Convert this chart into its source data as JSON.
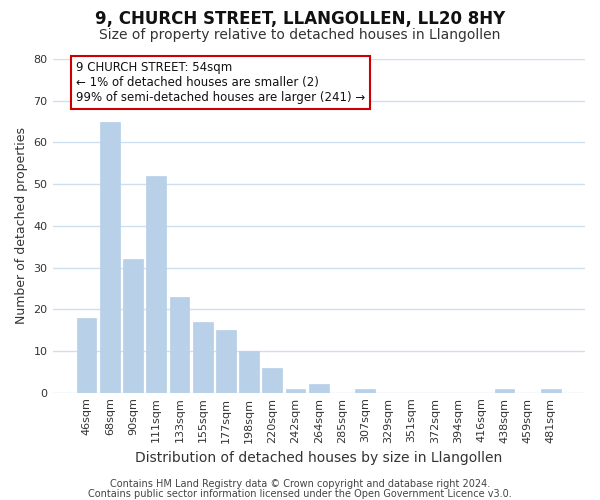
{
  "title": "9, CHURCH STREET, LLANGOLLEN, LL20 8HY",
  "subtitle": "Size of property relative to detached houses in Llangollen",
  "xlabel": "Distribution of detached houses by size in Llangollen",
  "ylabel": "Number of detached properties",
  "bar_labels": [
    "46sqm",
    "68sqm",
    "90sqm",
    "111sqm",
    "133sqm",
    "155sqm",
    "177sqm",
    "198sqm",
    "220sqm",
    "242sqm",
    "264sqm",
    "285sqm",
    "307sqm",
    "329sqm",
    "351sqm",
    "372sqm",
    "394sqm",
    "416sqm",
    "438sqm",
    "459sqm",
    "481sqm"
  ],
  "bar_heights": [
    18,
    65,
    32,
    52,
    23,
    17,
    15,
    10,
    6,
    1,
    2,
    0,
    1,
    0,
    0,
    0,
    0,
    0,
    1,
    0,
    1
  ],
  "bar_color": "#b8d0e8",
  "annotation_box_text": "9 CHURCH STREET: 54sqm\n← 1% of detached houses are smaller (2)\n99% of semi-detached houses are larger (241) →",
  "annotation_box_edge_color": "#cc0000",
  "annotation_box_facecolor": "white",
  "ylim": [
    0,
    80
  ],
  "yticks": [
    0,
    10,
    20,
    30,
    40,
    50,
    60,
    70,
    80
  ],
  "footnote1": "Contains HM Land Registry data © Crown copyright and database right 2024.",
  "footnote2": "Contains public sector information licensed under the Open Government Licence v3.0.",
  "title_fontsize": 12,
  "subtitle_fontsize": 10,
  "xlabel_fontsize": 10,
  "ylabel_fontsize": 9,
  "tick_fontsize": 8,
  "annotation_fontsize": 8.5,
  "footnote_fontsize": 7,
  "background_color": "#ffffff",
  "plot_bg_color": "#ffffff",
  "grid_color": "#d0dff0"
}
